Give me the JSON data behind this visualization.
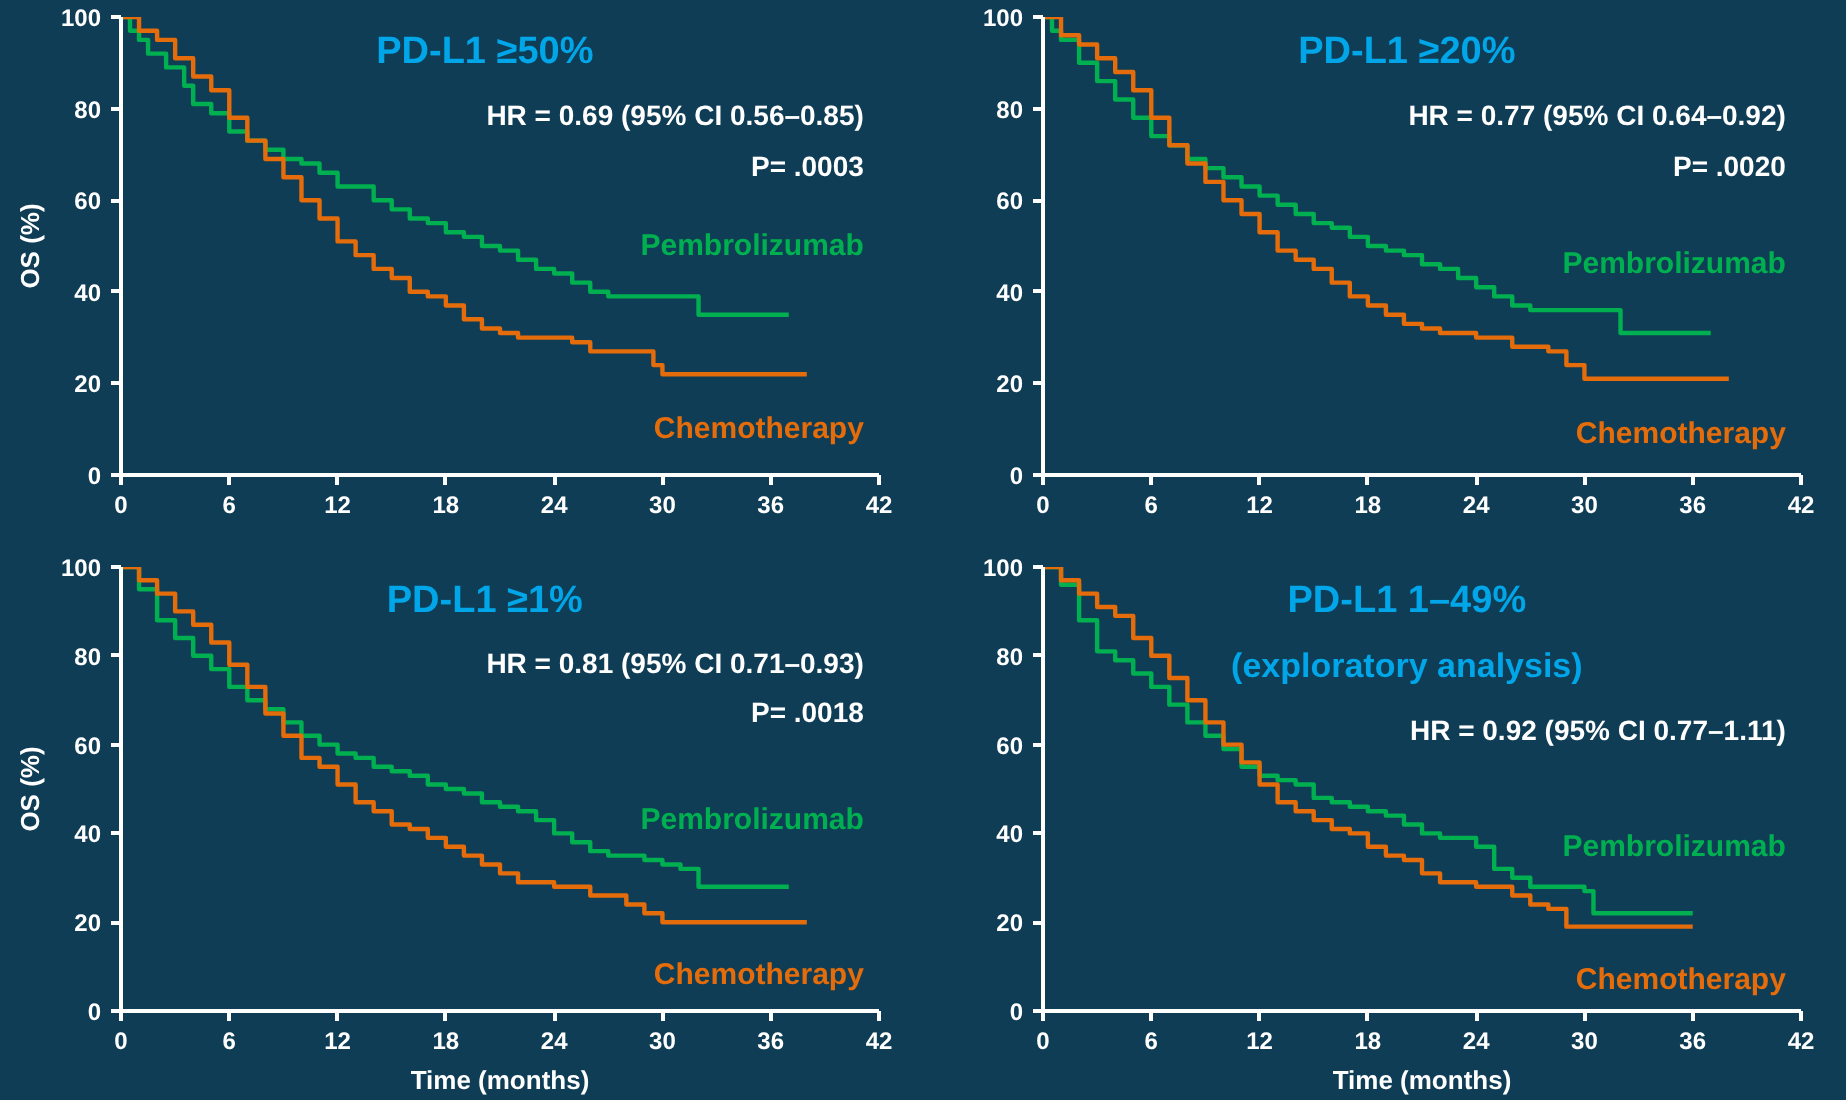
{
  "chart_data": [
    {
      "type": "step",
      "title": "PD-L1 ≥50%",
      "ylabel": "OS (%)",
      "xlim": [
        0,
        42
      ],
      "ylim": [
        0,
        100
      ],
      "xticks": [
        0,
        6,
        12,
        18,
        24,
        30,
        36,
        42
      ],
      "yticks": [
        0,
        20,
        40,
        60,
        80,
        100
      ],
      "grid": false,
      "tick_labels": "xy",
      "annotations": [
        "HR = 0.69 (95% CI 0.56–0.85)",
        "P= .0003"
      ],
      "series": [
        {
          "name": "Pembrolizumab",
          "color": "#00b050",
          "x": [
            0,
            0.5,
            1,
            1.5,
            2.5,
            3.5,
            4,
            5,
            6,
            7,
            8,
            9,
            10,
            11,
            12,
            13,
            14,
            15,
            16,
            17,
            18,
            19,
            20,
            21,
            22,
            23,
            24,
            25,
            26,
            27,
            31.5,
            32,
            37
          ],
          "values": [
            100,
            97,
            95,
            92,
            89,
            85,
            81,
            79,
            75,
            73,
            71,
            69,
            68,
            66,
            63,
            63,
            60,
            58,
            56,
            55,
            53,
            52,
            50,
            49,
            47,
            45,
            44,
            42,
            40,
            39,
            39,
            35,
            35
          ]
        },
        {
          "name": "Chemotherapy",
          "color": "#e46c0a",
          "x": [
            0,
            1,
            2,
            3,
            4,
            5,
            6,
            7,
            8,
            9,
            10,
            11,
            12,
            13,
            14,
            15,
            16,
            17,
            18,
            19,
            20,
            21,
            22,
            25,
            26,
            29,
            29.5,
            30,
            38
          ],
          "values": [
            100,
            97,
            95,
            91,
            87,
            84,
            78,
            73,
            69,
            65,
            60,
            56,
            51,
            48,
            45,
            43,
            40,
            39,
            37,
            34,
            32,
            31,
            30,
            29,
            27,
            27,
            24,
            22,
            22
          ]
        }
      ]
    },
    {
      "type": "step",
      "title": "PD-L1 ≥20%",
      "xlim": [
        0,
        42
      ],
      "ylim": [
        0,
        100
      ],
      "xticks": [
        0,
        6,
        12,
        18,
        24,
        30,
        36,
        42
      ],
      "yticks": [
        0,
        20,
        40,
        60,
        80,
        100
      ],
      "grid": false,
      "annotations": [
        "HR = 0.77 (95% CI 0.64–0.92)",
        "P= .0020"
      ],
      "series": [
        {
          "name": "Pembrolizumab",
          "color": "#00b050",
          "x": [
            0,
            0.5,
            1,
            2,
            3,
            4,
            5,
            6,
            7,
            8,
            9,
            10,
            11,
            12,
            13,
            14,
            15,
            16,
            17,
            18,
            19,
            20,
            21,
            22,
            23,
            24,
            25,
            26,
            27,
            31.5,
            32,
            37
          ],
          "values": [
            100,
            97,
            95,
            90,
            86,
            82,
            78,
            74,
            72,
            69,
            67,
            65,
            63,
            61,
            59,
            57,
            55,
            54,
            52,
            50,
            49,
            48,
            46,
            45,
            43,
            41,
            39,
            37,
            36,
            36,
            31,
            31
          ]
        },
        {
          "name": "Chemotherapy",
          "color": "#e46c0a",
          "x": [
            0,
            1,
            2,
            3,
            4,
            5,
            6,
            7,
            8,
            9,
            10,
            11,
            12,
            13,
            14,
            15,
            16,
            17,
            18,
            19,
            20,
            21,
            22,
            24,
            26,
            28,
            29,
            30,
            38
          ],
          "values": [
            100,
            96,
            94,
            91,
            88,
            84,
            78,
            72,
            68,
            64,
            60,
            57,
            53,
            49,
            47,
            45,
            42,
            39,
            37,
            35,
            33,
            32,
            31,
            30,
            28,
            27,
            24,
            21,
            21
          ]
        }
      ]
    },
    {
      "type": "step",
      "title": "PD-L1 ≥1%",
      "xlabel": "Time (months)",
      "ylabel": "OS (%)",
      "xlim": [
        0,
        42
      ],
      "ylim": [
        0,
        100
      ],
      "xticks": [
        0,
        6,
        12,
        18,
        24,
        30,
        36,
        42
      ],
      "yticks": [
        0,
        20,
        40,
        60,
        80,
        100
      ],
      "grid": false,
      "annotations": [
        "HR = 0.81 (95% CI 0.71–0.93)",
        "P= .0018"
      ],
      "series": [
        {
          "name": "Pembrolizumab",
          "color": "#00b050",
          "x": [
            0,
            1,
            2,
            3,
            4,
            5,
            6,
            7,
            8,
            9,
            10,
            11,
            12,
            13,
            14,
            15,
            16,
            17,
            18,
            19,
            20,
            21,
            22,
            23,
            24,
            25,
            26,
            27,
            29,
            30,
            31,
            32,
            37
          ],
          "values": [
            100,
            95,
            88,
            84,
            80,
            77,
            73,
            70,
            68,
            65,
            62,
            60,
            58,
            57,
            55,
            54,
            53,
            51,
            50,
            49,
            47,
            46,
            45,
            43,
            40,
            38,
            36,
            35,
            34,
            33,
            32,
            28,
            28
          ]
        },
        {
          "name": "Chemotherapy",
          "color": "#e46c0a",
          "x": [
            0,
            1,
            2,
            3,
            4,
            5,
            6,
            7,
            8,
            9,
            10,
            11,
            12,
            13,
            14,
            15,
            16,
            17,
            18,
            19,
            20,
            21,
            22,
            24,
            26,
            28,
            29,
            30,
            38
          ],
          "values": [
            100,
            97,
            94,
            90,
            87,
            83,
            78,
            73,
            67,
            62,
            57,
            55,
            51,
            47,
            45,
            42,
            41,
            39,
            37,
            35,
            33,
            31,
            29,
            28,
            26,
            24,
            22,
            20,
            20
          ]
        }
      ]
    },
    {
      "type": "step",
      "title": "PD-L1 1–49%",
      "subtitle": "(exploratory analysis)",
      "xlabel": "Time (months)",
      "xlim": [
        0,
        42
      ],
      "ylim": [
        0,
        100
      ],
      "xticks": [
        0,
        6,
        12,
        18,
        24,
        30,
        36,
        42
      ],
      "yticks": [
        0,
        20,
        40,
        60,
        80,
        100
      ],
      "grid": false,
      "annotations": [
        "HR = 0.92 (95% CI 0.77–1.11)"
      ],
      "series": [
        {
          "name": "Pembrolizumab",
          "color": "#00b050",
          "x": [
            0,
            1,
            2,
            3,
            4,
            5,
            6,
            7,
            8,
            9,
            10,
            11,
            12,
            13,
            14,
            15,
            16,
            17,
            18,
            19,
            20,
            21,
            22,
            24,
            25,
            26,
            27,
            29,
            30,
            30.5,
            36
          ],
          "values": [
            100,
            96,
            88,
            81,
            79,
            76,
            73,
            69,
            65,
            62,
            59,
            55,
            53,
            52,
            51,
            48,
            47,
            46,
            45,
            44,
            42,
            40,
            39,
            37,
            32,
            30,
            28,
            28,
            27,
            22,
            22
          ]
        },
        {
          "name": "Chemotherapy",
          "color": "#e46c0a",
          "x": [
            0,
            1,
            2,
            3,
            4,
            5,
            6,
            7,
            8,
            9,
            10,
            11,
            12,
            13,
            14,
            15,
            16,
            17,
            18,
            19,
            20,
            21,
            22,
            24,
            26,
            27,
            28,
            29,
            36
          ],
          "values": [
            100,
            97,
            94,
            91,
            89,
            84,
            80,
            75,
            70,
            65,
            60,
            56,
            51,
            47,
            45,
            43,
            41,
            40,
            37,
            35,
            34,
            31,
            29,
            28,
            26,
            24,
            23,
            19,
            19
          ]
        }
      ]
    }
  ]
}
